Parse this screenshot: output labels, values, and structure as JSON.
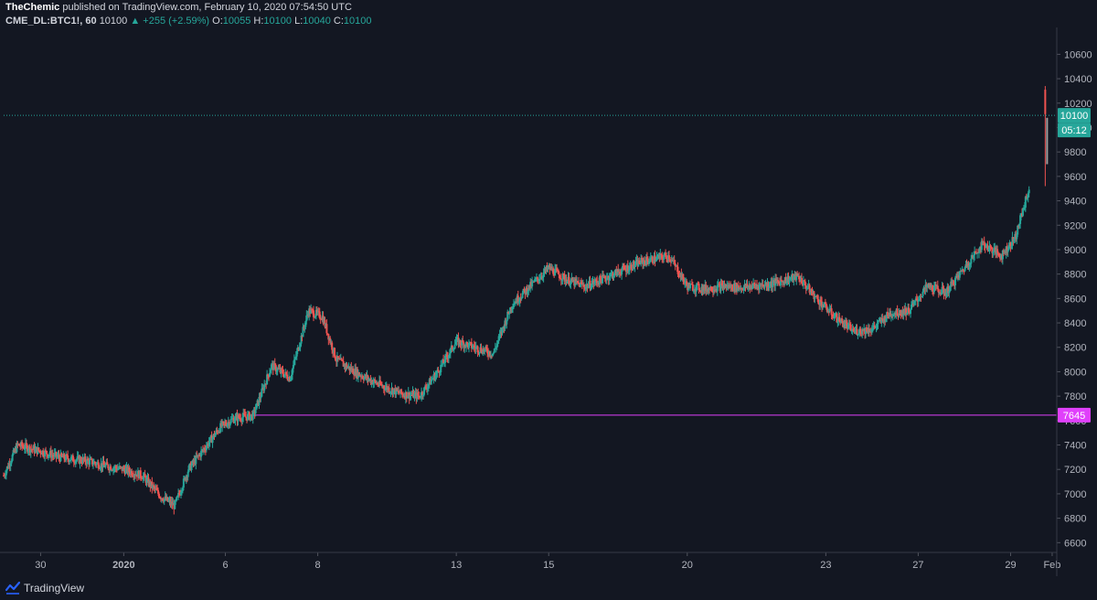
{
  "header": {
    "author": "TheChemic",
    "published_text": "published on TradingView.com, February 10, 2020 07:54:50 UTC",
    "symbol": "CME_DL:BTC1!, 60",
    "last": "10100",
    "change": "+255 (+2.59%)",
    "o_label": "O:",
    "o": "10055",
    "h_label": "H:",
    "h": "10100",
    "l_label": "L:",
    "l": "10040",
    "c_label": "C:",
    "c": "10100"
  },
  "footer": {
    "brand": "TradingView"
  },
  "colors": {
    "bg": "#131722",
    "up": "#26a69a",
    "down": "#ef5350",
    "grid": "#2a2e39",
    "level": "#e040fb",
    "price_line": "#26a69a"
  },
  "chart_data": {
    "type": "candlestick",
    "timeframe": "60",
    "yticks": [
      6600,
      6800,
      7000,
      7200,
      7400,
      7600,
      7800,
      8000,
      8200,
      8400,
      8600,
      8800,
      9000,
      9200,
      9400,
      9600,
      9800,
      10000,
      10200,
      10400,
      10600
    ],
    "ylim": [
      6520,
      10820
    ],
    "xlim": [
      -1.6,
      21.2
    ],
    "xticks": [
      {
        "label": "30",
        "t": -0.8
      },
      {
        "label": "2020",
        "t": 1.0,
        "bold": true
      },
      {
        "label": "6",
        "t": 3.2
      },
      {
        "label": "8",
        "t": 5.2
      },
      {
        "label": "13",
        "t": 8.2
      },
      {
        "label": "15",
        "t": 10.2
      },
      {
        "label": "20",
        "t": 13.2
      },
      {
        "label": "23",
        "t": 16.2
      },
      {
        "label": "27",
        "t": 18.2
      },
      {
        "label": "29",
        "t": 20.2
      },
      {
        "label": "Feb",
        "t": 21.1
      }
    ],
    "price_path": [
      [
        -1.6,
        7150
      ],
      [
        -1.3,
        7400
      ],
      [
        -0.8,
        7350
      ],
      [
        -0.4,
        7300
      ],
      [
        0.2,
        7270
      ],
      [
        0.6,
        7230
      ],
      [
        1.0,
        7200
      ],
      [
        1.4,
        7150
      ],
      [
        1.8,
        6980
      ],
      [
        2.1,
        6900
      ],
      [
        2.4,
        7200
      ],
      [
        2.8,
        7400
      ],
      [
        3.1,
        7550
      ],
      [
        3.4,
        7620
      ],
      [
        3.8,
        7640
      ],
      [
        4.2,
        8050
      ],
      [
        4.6,
        7950
      ],
      [
        5.0,
        8500
      ],
      [
        5.3,
        8450
      ],
      [
        5.6,
        8100
      ],
      [
        6.0,
        8000
      ],
      [
        6.5,
        7900
      ],
      [
        7.0,
        7820
      ],
      [
        7.4,
        7800
      ],
      [
        7.8,
        8000
      ],
      [
        8.2,
        8250
      ],
      [
        8.6,
        8200
      ],
      [
        9.0,
        8150
      ],
      [
        9.4,
        8550
      ],
      [
        9.8,
        8700
      ],
      [
        10.2,
        8850
      ],
      [
        10.6,
        8750
      ],
      [
        11.0,
        8700
      ],
      [
        11.6,
        8800
      ],
      [
        12.2,
        8900
      ],
      [
        12.8,
        8950
      ],
      [
        13.2,
        8700
      ],
      [
        13.6,
        8680
      ],
      [
        14.0,
        8700
      ],
      [
        14.4,
        8690
      ],
      [
        15.0,
        8720
      ],
      [
        15.6,
        8780
      ],
      [
        16.0,
        8600
      ],
      [
        16.4,
        8450
      ],
      [
        16.8,
        8330
      ],
      [
        17.2,
        8350
      ],
      [
        17.6,
        8480
      ],
      [
        18.0,
        8500
      ],
      [
        18.4,
        8700
      ],
      [
        18.8,
        8650
      ],
      [
        19.2,
        8850
      ],
      [
        19.6,
        9050
      ],
      [
        20.0,
        8950
      ],
      [
        20.3,
        9100
      ],
      [
        20.6,
        9500
      ]
    ],
    "spikes": [
      {
        "t": 20.95,
        "high": 10340,
        "low": 9520
      }
    ],
    "last_price": 10100,
    "last_price_label": "10100",
    "countdown_label": "05:12",
    "horizontal_level": {
      "price": 7645,
      "label": "7645",
      "start_t": 3.8
    }
  }
}
